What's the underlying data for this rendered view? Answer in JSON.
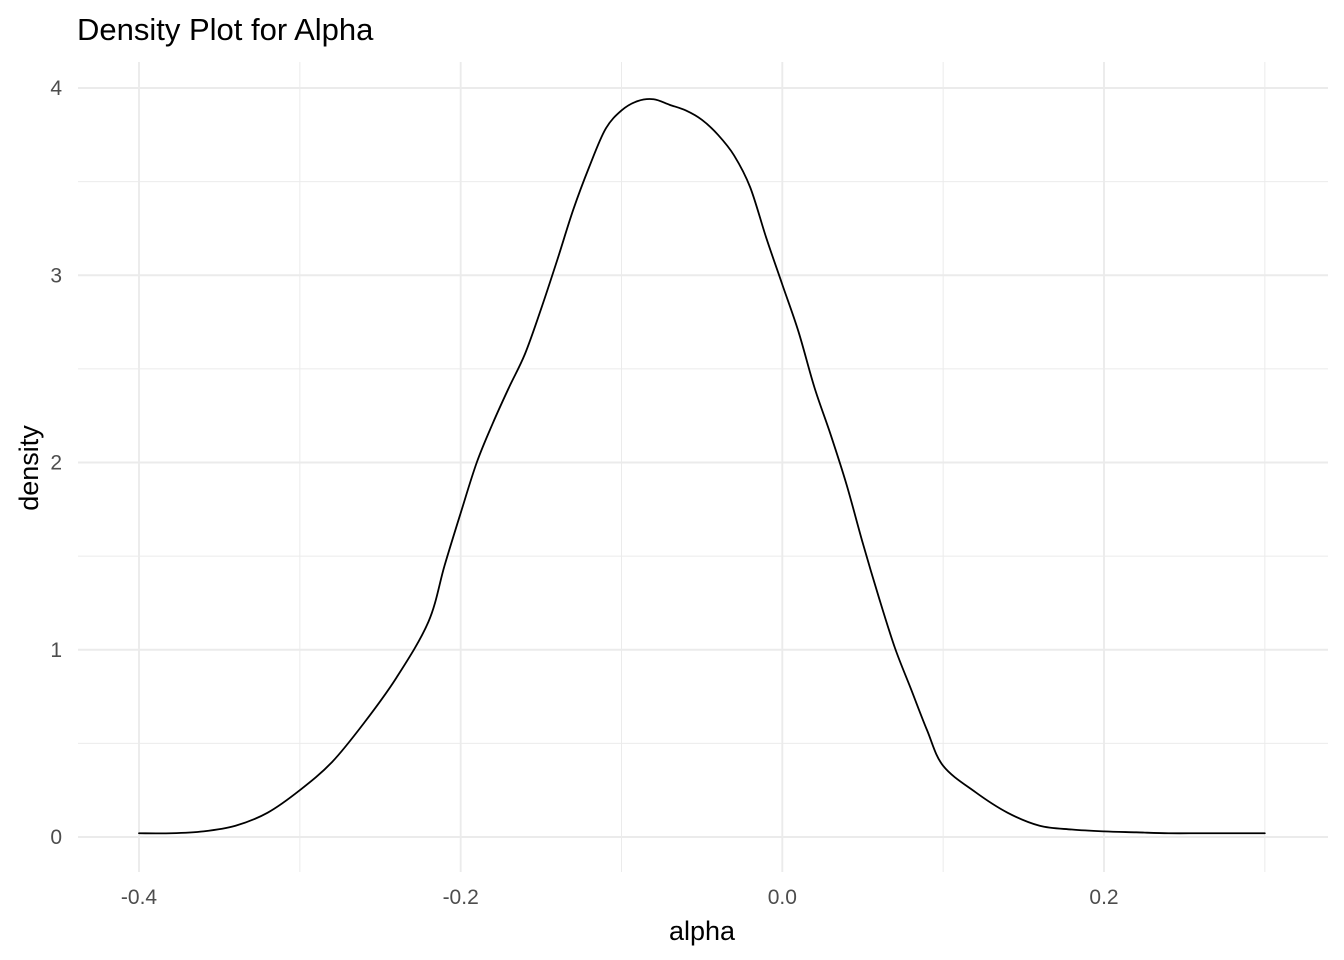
{
  "chart_data": {
    "type": "line",
    "title": "Density Plot for Alpha",
    "xlabel": "alpha",
    "ylabel": "density",
    "xlim": [
      -0.4,
      0.3
    ],
    "ylim": [
      0,
      4
    ],
    "grid": true,
    "legend": "none",
    "line_color": "#000000",
    "grid_color": "#ebebeb",
    "x_ticks": [
      -0.4,
      -0.2,
      0.0,
      0.2
    ],
    "x_tick_labels": [
      "-0.4",
      "-0.2",
      "0.0",
      "0.2"
    ],
    "x_minor": [
      -0.3,
      -0.1,
      0.1,
      0.3
    ],
    "y_ticks": [
      0,
      1,
      2,
      3,
      4
    ],
    "y_tick_labels": [
      "0",
      "1",
      "2",
      "3",
      "4"
    ],
    "y_minor": [
      0.5,
      1.5,
      2.5,
      3.5
    ],
    "series": [
      {
        "x": [
          -0.4,
          -0.38,
          -0.36,
          -0.34,
          -0.32,
          -0.3,
          -0.28,
          -0.26,
          -0.24,
          -0.22,
          -0.21,
          -0.2,
          -0.19,
          -0.18,
          -0.17,
          -0.16,
          -0.15,
          -0.14,
          -0.13,
          -0.12,
          -0.11,
          -0.1,
          -0.09,
          -0.08,
          -0.07,
          -0.06,
          -0.05,
          -0.04,
          -0.03,
          -0.02,
          -0.01,
          0.0,
          0.01,
          0.02,
          0.03,
          0.04,
          0.05,
          0.06,
          0.07,
          0.08,
          0.09,
          0.1,
          0.12,
          0.14,
          0.16,
          0.18,
          0.2,
          0.22,
          0.24,
          0.26,
          0.28,
          0.3
        ],
        "y": [
          0.02,
          0.02,
          0.03,
          0.06,
          0.13,
          0.25,
          0.4,
          0.61,
          0.85,
          1.15,
          1.45,
          1.73,
          2.0,
          2.21,
          2.4,
          2.58,
          2.82,
          3.08,
          3.35,
          3.58,
          3.78,
          3.88,
          3.93,
          3.94,
          3.91,
          3.88,
          3.83,
          3.75,
          3.64,
          3.47,
          3.2,
          2.95,
          2.7,
          2.4,
          2.15,
          1.88,
          1.57,
          1.28,
          1.01,
          0.79,
          0.57,
          0.38,
          0.24,
          0.13,
          0.06,
          0.04,
          0.03,
          0.025,
          0.02,
          0.02,
          0.02,
          0.02
        ]
      }
    ]
  }
}
